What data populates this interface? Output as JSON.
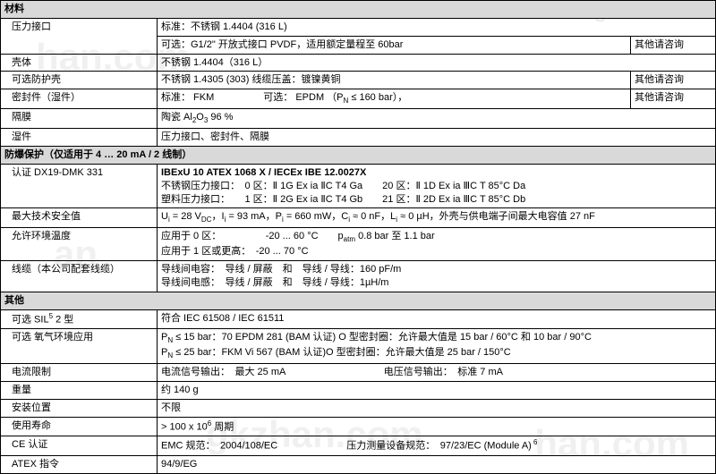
{
  "section1": {
    "title": "材料"
  },
  "s1r1": {
    "label": "压力接口",
    "l1": "标准：不锈钢 1.4404 (316 L)",
    "l2": "可选：G1/2\" 开放式接口 PVDF，适用额定量程至 60bar",
    "consult": "其他请咨询"
  },
  "s1r2": {
    "label": "壳体",
    "val": "不锈钢 1.4404（316 L）"
  },
  "s1r3": {
    "label": "可选防护壳",
    "val": "不锈钢 1.4305 (303)  线缆压盖：镀镍黄铜",
    "consult": "其他请咨询"
  },
  "s1r4": {
    "label": "密封件（湿件）",
    "val": "标准： FKM　　　　　可选： EPDM （PN ≤ 160 bar），",
    "consult": "其他请咨询"
  },
  "s1r5": {
    "label": "隔膜",
    "val": "陶瓷  Al₂O₃ 96 %"
  },
  "s1r6": {
    "label": "湿件",
    "val": "压力接口、密封件、隔膜"
  },
  "section2": {
    "title": "防爆保护（仅适用于 4 … 20 mA / 2 线制）"
  },
  "s2r1": {
    "label": "认证  DX19-DMK 331",
    "h": "IBExU 10 ATEX 1068 X   /   IECEx IBE 12.0027X",
    "l1": "不锈钢压力接口：　0 区：Ⅱ 1G Ex ia ⅡC T4 Ga　　20 区：Ⅱ 1D Ex ia ⅢC T 85°C Da",
    "l2": "塑料压力接口：　　1 区：Ⅱ 2G Ex ia ⅡC T4 Gb　　21 区：Ⅱ 2D Ex ia ⅢC T 85°C Db"
  },
  "s2r2": {
    "label": "最大技术安全值",
    "val": "Uᵢ = 28 V_DC，Iᵢ = 93 mA，Pᵢ = 660 mW，Cᵢ ≈ 0 nF，Lᵢ ≈ 0 µH，外壳与供电端子间最大电容值 27 nF"
  },
  "s2r3": {
    "label": "允许环境温度",
    "l1": "应用于 0 区：　　　　-20 ... 60 °C　　p_atm 0.8 bar 至 1.1 bar",
    "l2": "应用于 1 区或更高：　-20 ... 70 °C"
  },
  "s2r4": {
    "label": "线缆（本公司配套线缆）",
    "l1": "导线间电容：　导线 / 屏蔽　和　导线 / 导线：160 pF/m",
    "l2": "导线间电感：　导线 / 屏蔽　和　导线 / 导线：1µH/m"
  },
  "section3": {
    "title": "其他"
  },
  "s3r1": {
    "label": "可选  SIL⁵ 2 型",
    "val": "符合  IEC 61508 / IEC 61511"
  },
  "s3r2": {
    "label": "可选  氧气环境应用",
    "l1": "PN ≤ 15 bar：70 EPDM 281 (BAM 认证) O 型密封圈：允许最大值是 15 bar / 60°C  和  10 bar / 90°C",
    "l2": "PN ≤ 25 bar：FKM Vi 567 (BAM 认证)O 型密封圈：允许最大值是 25 bar / 150°C"
  },
  "s3r3": {
    "label": "电流限制",
    "val": "电流信号输出：　最大 25 mA　　　　　　　　　　电压信号输出：　标准 7 mA"
  },
  "s3r4": {
    "label": "重量",
    "val": "约 140 g"
  },
  "s3r5": {
    "label": "安装位置",
    "val": "不限"
  },
  "s3r6": {
    "label": "使用寿命",
    "val": "> 100 x 10⁶ 周期"
  },
  "s3r7": {
    "label": "CE 认证",
    "val": "EMC  规范：　2004/108/EC　　　　　　　压力测量设备规范：　97/23/EC (Module A) ⁶"
  },
  "s3r8": {
    "label": "ATEX 指令",
    "val": "94/9/EG"
  }
}
